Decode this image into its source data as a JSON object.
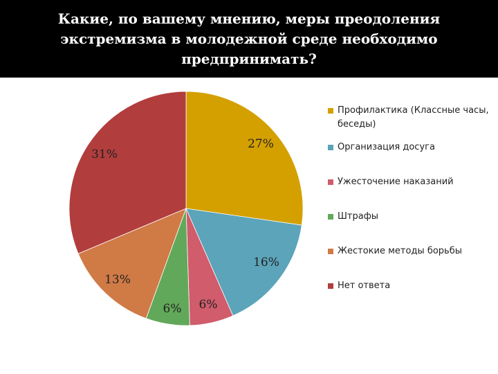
{
  "slide": {
    "title": "Какие, по вашему мнению, меры преодоления экстремизма в молодежной среде необходимо предпринимать?"
  },
  "chart_data": {
    "type": "pie",
    "title": "Какие, по вашему мнению, меры преодоления экстремизма в молодежной среде необходимо предпринимать?",
    "categories": [
      "Профилактика (Классные часы, беседы)",
      "Организация досуга",
      "Ужесточение наказаний",
      "Штрафы",
      "Жестокие методы борьбы",
      "Нет ответа"
    ],
    "values": [
      27,
      16,
      6,
      6,
      13,
      31
    ],
    "data_labels": [
      "27%",
      "16%",
      "6%",
      "6%",
      "13%",
      "31%"
    ],
    "colors": [
      "#D4A000",
      "#5BA4B9",
      "#D05C6C",
      "#62A85A",
      "#D07A46",
      "#B23D3D"
    ],
    "legend_position": "right"
  }
}
